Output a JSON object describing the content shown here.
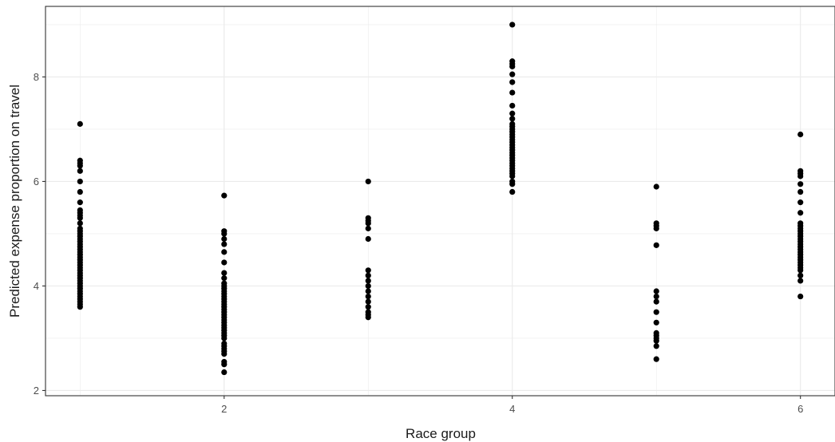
{
  "chart_data": {
    "type": "scatter",
    "title": "",
    "xlabel": "Race group",
    "ylabel": "Predicted expense proportion on travel",
    "xlim": [
      0.76,
      6.24
    ],
    "ylim": [
      1.9,
      9.35
    ],
    "x_ticks": [
      2,
      4,
      6
    ],
    "y_ticks": [
      2,
      4,
      6,
      8
    ],
    "grid": true,
    "legend": "none",
    "colors": {
      "point": "#000000",
      "grid": "#ebebeb",
      "panel_border": "#333333"
    },
    "series": [
      {
        "points": [
          [
            1,
            7.1
          ],
          [
            1,
            6.4
          ],
          [
            1,
            6.35
          ],
          [
            1,
            6.3
          ],
          [
            1,
            6.2
          ],
          [
            1,
            6.0
          ],
          [
            1,
            5.8
          ],
          [
            1,
            5.6
          ],
          [
            1,
            5.45
          ],
          [
            1,
            5.4
          ],
          [
            1,
            5.35
          ],
          [
            1,
            5.3
          ],
          [
            1,
            5.2
          ],
          [
            1,
            5.1
          ],
          [
            1,
            5.05
          ],
          [
            1,
            5.0
          ],
          [
            1,
            4.95
          ],
          [
            1,
            4.9
          ],
          [
            1,
            4.85
          ],
          [
            1,
            4.8
          ],
          [
            1,
            4.75
          ],
          [
            1,
            4.7
          ],
          [
            1,
            4.65
          ],
          [
            1,
            4.6
          ],
          [
            1,
            4.55
          ],
          [
            1,
            4.5
          ],
          [
            1,
            4.45
          ],
          [
            1,
            4.4
          ],
          [
            1,
            4.35
          ],
          [
            1,
            4.3
          ],
          [
            1,
            4.25
          ],
          [
            1,
            4.2
          ],
          [
            1,
            4.15
          ],
          [
            1,
            4.1
          ],
          [
            1,
            4.05
          ],
          [
            1,
            4.0
          ],
          [
            1,
            3.95
          ],
          [
            1,
            3.9
          ],
          [
            1,
            3.85
          ],
          [
            1,
            3.8
          ],
          [
            1,
            3.75
          ],
          [
            1,
            3.7
          ],
          [
            1,
            3.65
          ],
          [
            1,
            3.6
          ],
          [
            2,
            5.73
          ],
          [
            2,
            5.05
          ],
          [
            2,
            5.0
          ],
          [
            2,
            4.9
          ],
          [
            2,
            4.8
          ],
          [
            2,
            4.65
          ],
          [
            2,
            4.45
          ],
          [
            2,
            4.25
          ],
          [
            2,
            4.15
          ],
          [
            2,
            4.05
          ],
          [
            2,
            4.0
          ],
          [
            2,
            3.95
          ],
          [
            2,
            3.9
          ],
          [
            2,
            3.85
          ],
          [
            2,
            3.8
          ],
          [
            2,
            3.75
          ],
          [
            2,
            3.7
          ],
          [
            2,
            3.65
          ],
          [
            2,
            3.6
          ],
          [
            2,
            3.55
          ],
          [
            2,
            3.5
          ],
          [
            2,
            3.45
          ],
          [
            2,
            3.4
          ],
          [
            2,
            3.35
          ],
          [
            2,
            3.3
          ],
          [
            2,
            3.25
          ],
          [
            2,
            3.2
          ],
          [
            2,
            3.15
          ],
          [
            2,
            3.1
          ],
          [
            2,
            3.05
          ],
          [
            2,
            3.0
          ],
          [
            2,
            2.9
          ],
          [
            2,
            2.85
          ],
          [
            2,
            2.8
          ],
          [
            2,
            2.75
          ],
          [
            2,
            2.7
          ],
          [
            2,
            2.55
          ],
          [
            2,
            2.5
          ],
          [
            2,
            2.35
          ],
          [
            3,
            6.0
          ],
          [
            3,
            5.3
          ],
          [
            3,
            5.25
          ],
          [
            3,
            5.2
          ],
          [
            3,
            5.1
          ],
          [
            3,
            4.9
          ],
          [
            3,
            4.3
          ],
          [
            3,
            4.2
          ],
          [
            3,
            4.1
          ],
          [
            3,
            4.0
          ],
          [
            3,
            3.9
          ],
          [
            3,
            3.8
          ],
          [
            3,
            3.7
          ],
          [
            3,
            3.6
          ],
          [
            3,
            3.5
          ],
          [
            3,
            3.45
          ],
          [
            3,
            3.4
          ],
          [
            4,
            9.0
          ],
          [
            4,
            8.3
          ],
          [
            4,
            8.25
          ],
          [
            4,
            8.2
          ],
          [
            4,
            8.05
          ],
          [
            4,
            7.9
          ],
          [
            4,
            7.7
          ],
          [
            4,
            7.45
          ],
          [
            4,
            7.3
          ],
          [
            4,
            7.2
          ],
          [
            4,
            7.1
          ],
          [
            4,
            7.05
          ],
          [
            4,
            7.0
          ],
          [
            4,
            6.95
          ],
          [
            4,
            6.9
          ],
          [
            4,
            6.85
          ],
          [
            4,
            6.8
          ],
          [
            4,
            6.75
          ],
          [
            4,
            6.7
          ],
          [
            4,
            6.65
          ],
          [
            4,
            6.6
          ],
          [
            4,
            6.55
          ],
          [
            4,
            6.5
          ],
          [
            4,
            6.45
          ],
          [
            4,
            6.4
          ],
          [
            4,
            6.35
          ],
          [
            4,
            6.3
          ],
          [
            4,
            6.25
          ],
          [
            4,
            6.2
          ],
          [
            4,
            6.15
          ],
          [
            4,
            6.1
          ],
          [
            4,
            6.0
          ],
          [
            4,
            5.95
          ],
          [
            4,
            5.8
          ],
          [
            5,
            5.9
          ],
          [
            5,
            5.2
          ],
          [
            5,
            5.15
          ],
          [
            5,
            5.1
          ],
          [
            5,
            4.78
          ],
          [
            5,
            3.9
          ],
          [
            5,
            3.8
          ],
          [
            5,
            3.7
          ],
          [
            5,
            3.5
          ],
          [
            5,
            3.3
          ],
          [
            5,
            3.1
          ],
          [
            5,
            3.05
          ],
          [
            5,
            3.0
          ],
          [
            5,
            2.95
          ],
          [
            5,
            2.85
          ],
          [
            5,
            2.6
          ],
          [
            6,
            6.9
          ],
          [
            6,
            6.2
          ],
          [
            6,
            6.15
          ],
          [
            6,
            6.1
          ],
          [
            6,
            5.95
          ],
          [
            6,
            5.8
          ],
          [
            6,
            5.6
          ],
          [
            6,
            5.4
          ],
          [
            6,
            5.2
          ],
          [
            6,
            5.15
          ],
          [
            6,
            5.1
          ],
          [
            6,
            5.05
          ],
          [
            6,
            5.0
          ],
          [
            6,
            4.95
          ],
          [
            6,
            4.9
          ],
          [
            6,
            4.85
          ],
          [
            6,
            4.8
          ],
          [
            6,
            4.75
          ],
          [
            6,
            4.7
          ],
          [
            6,
            4.65
          ],
          [
            6,
            4.6
          ],
          [
            6,
            4.55
          ],
          [
            6,
            4.5
          ],
          [
            6,
            4.45
          ],
          [
            6,
            4.4
          ],
          [
            6,
            4.35
          ],
          [
            6,
            4.3
          ],
          [
            6,
            4.2
          ],
          [
            6,
            4.1
          ],
          [
            6,
            3.8
          ]
        ]
      }
    ]
  }
}
